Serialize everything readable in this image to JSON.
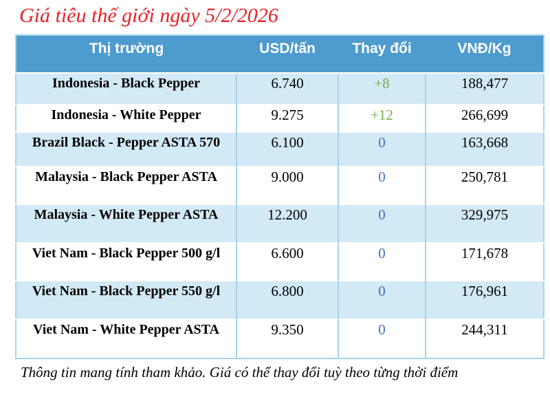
{
  "page_title": "Giá tiêu thế giới ngày 5/2/2026",
  "disclaimer": "Thông tin mang tính tham khảo. Giá có thể thay đổi tuỳ theo từng thời điểm",
  "colors": {
    "header_bg": "#4e9bcd",
    "band_row_bg": "#d2e9f6",
    "table_border": "#a5d3ec",
    "title_red": "#e62228",
    "change_up_green": "#71ad47",
    "change_zero_blue": "#4472c4",
    "header_text": "#ffffff",
    "body_text": "#000000"
  },
  "chart_data": {
    "type": "table",
    "title": "Giá tiêu thế giới ngày 5/2/2026",
    "columns": [
      "Thị trường",
      "USD/tấn",
      "Thay đổi",
      "VNĐ/Kg"
    ],
    "rows": [
      {
        "market": "Indonesia - Black Pepper",
        "usd_per_ton": "6.740",
        "change": "+8",
        "change_direction": "up",
        "vnd_per_kg": "188,477"
      },
      {
        "market": "Indonesia - White Pepper",
        "usd_per_ton": "9.275",
        "change": "+12",
        "change_direction": "up",
        "vnd_per_kg": "266,699"
      },
      {
        "market": "Brazil Black - Pepper ASTA 570",
        "usd_per_ton": "6.100",
        "change": "0",
        "change_direction": "zero",
        "vnd_per_kg": "163,668"
      },
      {
        "market": "Malaysia - Black Pepper ASTA",
        "usd_per_ton": "9.000",
        "change": "0",
        "change_direction": "zero",
        "vnd_per_kg": "250,781"
      },
      {
        "market": "Malaysia - White Pepper ASTA",
        "usd_per_ton": "12.200",
        "change": "0",
        "change_direction": "zero",
        "vnd_per_kg": "329,975"
      },
      {
        "market": "Viet Nam - Black Pepper 500 g/l",
        "usd_per_ton": "6.600",
        "change": "0",
        "change_direction": "zero",
        "vnd_per_kg": "171,678"
      },
      {
        "market": "Viet Nam - Black Pepper 550 g/l",
        "usd_per_ton": "6.800",
        "change": "0",
        "change_direction": "zero",
        "vnd_per_kg": "176,961"
      },
      {
        "market": "Viet Nam - White Pepper ASTA",
        "usd_per_ton": "9.350",
        "change": "0",
        "change_direction": "zero",
        "vnd_per_kg": "244,311"
      }
    ],
    "row_banding": [
      "band",
      "plain",
      "band",
      "plain",
      "band",
      "plain",
      "band",
      "plain"
    ],
    "grid": true,
    "legend_position": "none"
  }
}
